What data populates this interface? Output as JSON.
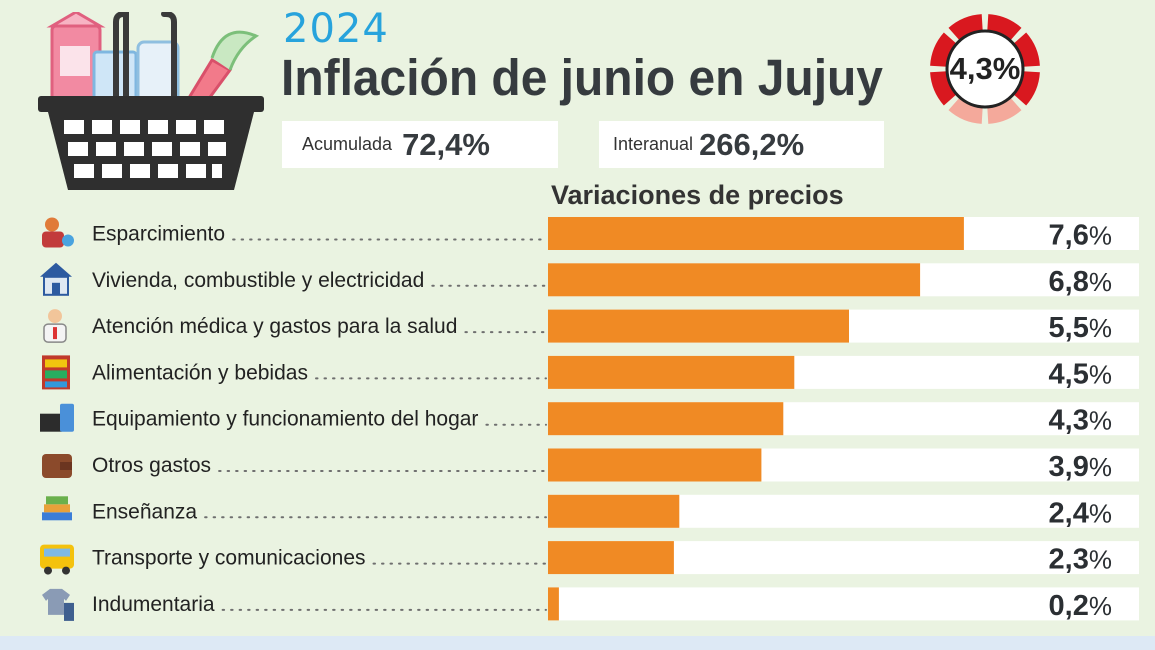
{
  "header": {
    "year": "2024",
    "title": "Inflación de junio en Jujuy",
    "monthly_value": "4,3%",
    "accumulated_label": "Acumulada",
    "accumulated_value": "72,4%",
    "interannual_label": "Interanual",
    "interannual_value": "266,2%"
  },
  "colors": {
    "bar": "#f08a24",
    "track": "#ffffff",
    "dial_dark": "#d9181f",
    "dial_light": "#f4a99b",
    "year": "#27a3dc",
    "title": "#363b3f"
  },
  "chart_data": {
    "type": "bar",
    "orientation": "horizontal",
    "title": "Variaciones de precios",
    "xlabel": "",
    "ylabel": "",
    "unit": "%",
    "xlim": [
      0,
      10.8
    ],
    "grid": false,
    "legend": "none",
    "categories": [
      "Esparcimiento",
      "Vivienda, combustible y electricidad",
      "Atención médica y gastos para la salud",
      "Alimentación y bebidas",
      "Equipamiento y funcionamiento del hogar",
      "Otros gastos",
      "Enseñanza",
      "Transporte y comunicaciones",
      "Indumentaria"
    ],
    "values": [
      7.6,
      6.8,
      5.5,
      4.5,
      4.3,
      3.9,
      2.4,
      2.3,
      0.2
    ],
    "value_labels": [
      "7,6",
      "6,8",
      "5,5",
      "4,5",
      "4,3",
      "3,9",
      "2,4",
      "2,3",
      "0,2"
    ],
    "icons": [
      "leisure-icon",
      "house-icon",
      "doctor-icon",
      "grocery-shelf-icon",
      "appliance-icon",
      "wallet-icon",
      "books-icon",
      "bus-icon",
      "clothes-icon"
    ]
  }
}
